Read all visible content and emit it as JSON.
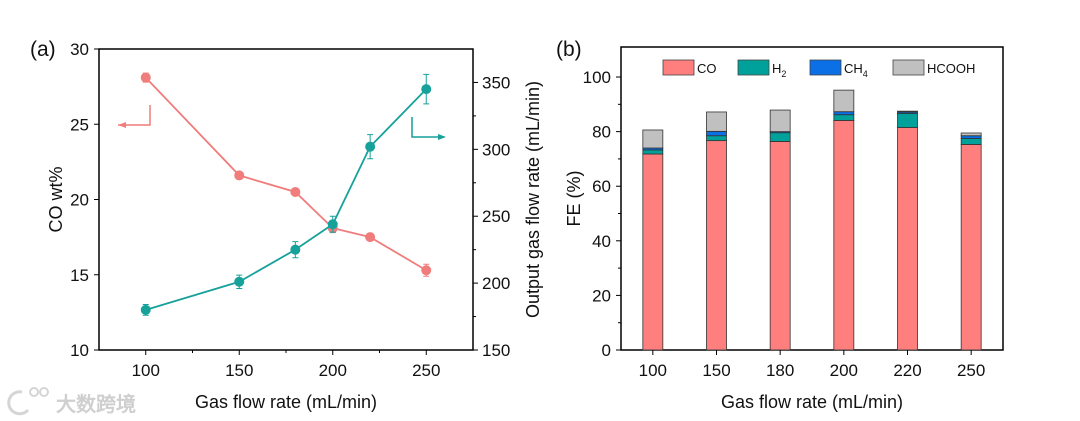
{
  "watermark": "大数跨境",
  "chart_data": [
    {
      "panel_label": "(a)",
      "type": "line",
      "xlabel": "Gas flow rate (mL/min)",
      "ylabel": "CO wt%",
      "y2label": "Output gas flow rate (mL/min)",
      "xlim": [
        75,
        275
      ],
      "ylim": [
        10,
        30
      ],
      "y2lim": [
        150,
        375
      ],
      "xticks": [
        100,
        150,
        200,
        250
      ],
      "yticks": [
        10,
        15,
        20,
        25,
        30
      ],
      "y2ticks": [
        150,
        200,
        250,
        300,
        350
      ],
      "series": [
        {
          "name": "CO wt%",
          "axis": "left",
          "color": "#f07c7c",
          "x": [
            100,
            150,
            180,
            200,
            220,
            250
          ],
          "y": [
            28.1,
            21.6,
            20.5,
            18.1,
            17.5,
            15.3
          ],
          "err": [
            0.3,
            0.1,
            0.2,
            0.3,
            0.1,
            0.4
          ]
        },
        {
          "name": "Output gas flow rate",
          "axis": "right",
          "color": "#17a19b",
          "x": [
            100,
            150,
            180,
            200,
            220,
            250
          ],
          "y": [
            180,
            201,
            225,
            244,
            302,
            345
          ],
          "err": [
            4,
            5,
            6,
            6,
            9,
            11
          ]
        }
      ]
    },
    {
      "panel_label": "(b)",
      "type": "bar",
      "stacked": true,
      "xlabel": "Gas flow rate (mL/min)",
      "ylabel": "FE (%)",
      "ylim": [
        0,
        111
      ],
      "yticks": [
        0,
        20,
        40,
        60,
        80,
        100
      ],
      "categories": [
        "100",
        "150",
        "180",
        "200",
        "220",
        "250"
      ],
      "legend_position": "top",
      "series": [
        {
          "name": "CO",
          "label_main": "CO",
          "label_sub": "",
          "color": "#ff7f7f",
          "values": [
            71.8,
            76.7,
            76.4,
            84.1,
            81.5,
            75.3
          ]
        },
        {
          "name": "H2",
          "label_main": "H",
          "label_sub": "2",
          "color": "#00a19a",
          "values": [
            1.5,
            1.8,
            3.2,
            2.1,
            5.2,
            2.2
          ]
        },
        {
          "name": "CH4",
          "label_main": "CH",
          "label_sub": "4",
          "color": "#0b6fe6",
          "values": [
            0.7,
            1.6,
            0.4,
            1.1,
            0.5,
            1.0
          ]
        },
        {
          "name": "HCOOH",
          "label_main": "HCOOH",
          "label_sub": "",
          "color": "#c0c0c0",
          "values": [
            6.6,
            7.1,
            7.9,
            7.9,
            0.3,
            1.0
          ]
        }
      ]
    }
  ]
}
